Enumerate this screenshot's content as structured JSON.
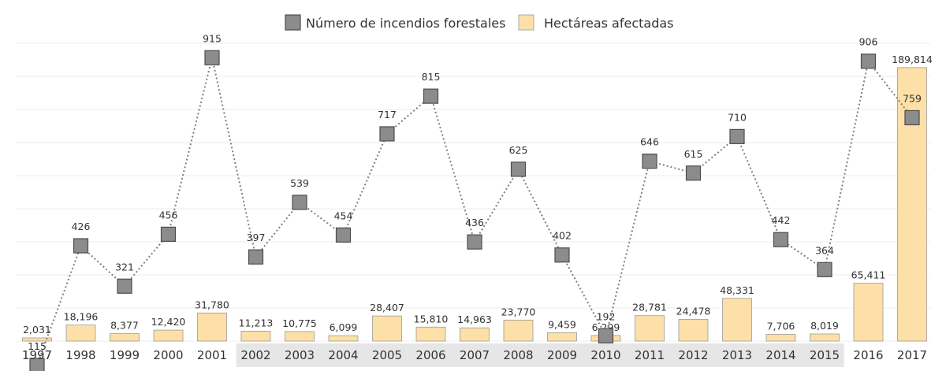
{
  "chart_data": {
    "type": "bar+line",
    "categories": [
      "1997",
      "1998",
      "1999",
      "2000",
      "2001",
      "2002",
      "2003",
      "2004",
      "2005",
      "2006",
      "2007",
      "2008",
      "2009",
      "2010",
      "2011",
      "2012",
      "2013",
      "2014",
      "2015",
      "2016",
      "2017"
    ],
    "series": [
      {
        "name": "Número de incendios forestales",
        "type": "line",
        "marker": "square",
        "values": [
          115,
          426,
          321,
          456,
          915,
          397,
          539,
          454,
          717,
          815,
          436,
          625,
          402,
          192,
          646,
          615,
          710,
          442,
          364,
          906,
          759
        ],
        "value_labels": [
          "115",
          "426",
          "321",
          "456",
          "915",
          "397",
          "539",
          "454",
          "717",
          "815",
          "436",
          "625",
          "402",
          "192",
          "646",
          "615",
          "710",
          "442",
          "364",
          "906",
          "759"
        ]
      },
      {
        "name": "Hectáreas afectadas",
        "type": "bar",
        "values": [
          2031,
          18196,
          8377,
          12420,
          31780,
          11213,
          10775,
          6099,
          28407,
          15810,
          14963,
          23770,
          9459,
          6299,
          28781,
          24478,
          48331,
          7706,
          8019,
          65411,
          189814
        ],
        "value_labels": [
          "2,031",
          "18,196",
          "8,377",
          "12,420",
          "31,780",
          "11,213",
          "10,775",
          "6,099",
          "28,407",
          "15,810",
          "14,963",
          "23,770",
          "9,459",
          "6,299",
          "28,781",
          "24,478",
          "48,331",
          "7,706",
          "8,019",
          "65,411",
          "189,814"
        ]
      }
    ],
    "highlighted_categories": [
      "2002",
      "2015"
    ],
    "legend": {
      "position": "top-center",
      "entries": [
        "Número de incendios forestales",
        "Hectáreas afectadas"
      ]
    },
    "grid": true,
    "colors": {
      "bar_fill": "#fde0a8",
      "point_fill": "#8c8c8c",
      "line": "#7f7f7f",
      "highlight_band": "#e6e6e6"
    }
  }
}
